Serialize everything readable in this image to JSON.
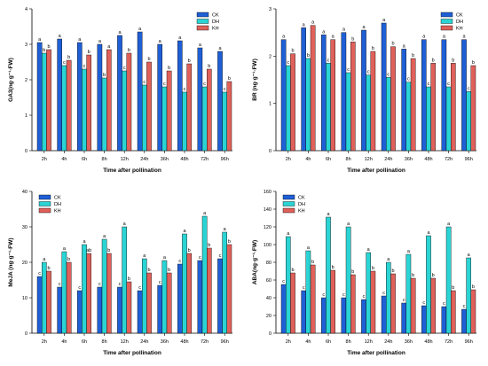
{
  "colors": {
    "CK": "#1f5fd6",
    "DH": "#2ad4d4",
    "KH": "#e0605a",
    "bar_edge": "#000000"
  },
  "chart_data": [
    {
      "type": "bar",
      "xlabel": "Time after pollination",
      "ylabel": "GA3(ng·g⁻¹·FW)",
      "ylim": [
        0,
        4
      ],
      "yticks": [
        "0",
        "1",
        "2",
        "3",
        "4"
      ],
      "ytick_values": [
        0,
        1,
        2,
        3,
        4
      ],
      "legend_placement": "top-right",
      "categories": [
        "2h",
        "4h",
        "6h",
        "8h",
        "12h",
        "24h",
        "36h",
        "48h",
        "72h",
        "96h"
      ],
      "series": [
        {
          "name": "CK",
          "values": [
            3.05,
            3.15,
            3.05,
            3.0,
            3.25,
            3.35,
            3.0,
            3.1,
            2.9,
            2.8
          ],
          "letters": [
            "a",
            "a",
            "a",
            "a",
            "a",
            "a",
            "a",
            "a",
            "a",
            "a"
          ]
        },
        {
          "name": "DH",
          "values": [
            2.75,
            2.4,
            2.3,
            2.05,
            2.25,
            1.85,
            1.8,
            1.65,
            1.8,
            1.65
          ],
          "letters": [
            "b",
            "c",
            "c",
            "b",
            "c",
            "c",
            "c",
            "c",
            "c",
            "c"
          ]
        },
        {
          "name": "KH",
          "values": [
            2.85,
            2.55,
            2.7,
            2.85,
            2.75,
            2.5,
            2.25,
            2.45,
            2.3,
            1.95
          ],
          "letters": [
            "b",
            "b",
            "b",
            "a",
            "b",
            "b",
            "b",
            "b",
            "b",
            "b"
          ]
        }
      ]
    },
    {
      "type": "bar",
      "xlabel": "Time after pollination",
      "ylabel": "BR (ng·g⁻¹·FW)",
      "ylim": [
        0,
        3
      ],
      "yticks": [
        "0",
        "1",
        "2",
        "3"
      ],
      "ytick_values": [
        0,
        1,
        2,
        3
      ],
      "legend_placement": "top-right",
      "categories": [
        "2h",
        "4h",
        "6h",
        "8h",
        "12h",
        "24h",
        "36h",
        "48h",
        "72h",
        "96h"
      ],
      "series": [
        {
          "name": "CK",
          "values": [
            2.35,
            2.6,
            2.45,
            2.5,
            2.55,
            2.7,
            2.15,
            2.35,
            2.35,
            2.35
          ],
          "letters": [
            "a",
            "a",
            "a",
            "a",
            "a",
            "a",
            "a",
            "a",
            "a",
            "a"
          ]
        },
        {
          "name": "DH",
          "values": [
            1.8,
            1.95,
            1.85,
            1.65,
            1.6,
            1.55,
            1.45,
            1.35,
            1.35,
            1.25
          ],
          "letters": [
            "c",
            "b",
            "c",
            "c",
            "c",
            "c",
            "c",
            "c",
            "c",
            "c"
          ]
        },
        {
          "name": "KH",
          "values": [
            2.05,
            2.65,
            2.35,
            2.3,
            2.1,
            2.2,
            1.95,
            1.85,
            1.85,
            1.8
          ],
          "letters": [
            "b",
            "a",
            "a",
            "b",
            "b",
            "b",
            "b",
            "b",
            "b",
            "b"
          ]
        }
      ]
    },
    {
      "type": "bar",
      "xlabel": "Time after pollination",
      "ylabel": "MeJA (ng·g⁻¹·FW)",
      "ylim": [
        0,
        40
      ],
      "yticks": [
        "0",
        "10",
        "20",
        "30",
        "40"
      ],
      "ytick_values": [
        0,
        10,
        20,
        30,
        40
      ],
      "legend_placement": "top-left",
      "categories": [
        "2h",
        "4h",
        "6h",
        "8h",
        "12h",
        "24h",
        "36h",
        "48h",
        "72h",
        "96h"
      ],
      "series": [
        {
          "name": "CK",
          "values": [
            16,
            13,
            12,
            13,
            13,
            12,
            13.5,
            19.5,
            20.5,
            21
          ],
          "letters": [
            "c",
            "c",
            "c",
            "c",
            "c",
            "c",
            "c",
            "c",
            "c",
            "c"
          ]
        },
        {
          "name": "DH",
          "values": [
            20,
            23,
            25,
            26.5,
            30,
            21,
            20.5,
            28,
            33,
            28.5
          ],
          "letters": [
            "a",
            "a",
            "a",
            "a",
            "a",
            "a",
            "a",
            "a",
            "a",
            "a"
          ]
        },
        {
          "name": "KH",
          "values": [
            17.5,
            20,
            22.5,
            22.5,
            14.5,
            17,
            17,
            22.5,
            24,
            25
          ],
          "letters": [
            "b",
            "b",
            "ab",
            "b",
            "b",
            "b",
            "b",
            "b",
            "b",
            "b"
          ]
        }
      ]
    },
    {
      "type": "bar",
      "xlabel": "Time after pollination",
      "ylabel": "ABA(ng·g⁻¹·FW)",
      "ylim": [
        0,
        160
      ],
      "yticks": [
        "0",
        "20",
        "40",
        "60",
        "80",
        "100",
        "120",
        "140",
        "160"
      ],
      "ytick_values": [
        0,
        20,
        40,
        60,
        80,
        100,
        120,
        140,
        160
      ],
      "legend_placement": "top-left",
      "categories": [
        "2h",
        "4h",
        "6h",
        "8h",
        "12h",
        "24h",
        "36h",
        "48h",
        "72h",
        "96h"
      ],
      "series": [
        {
          "name": "CK",
          "values": [
            55,
            48,
            40,
            40,
            38,
            42,
            34,
            31,
            30,
            27
          ],
          "letters": [
            "c",
            "c",
            "c",
            "c",
            "c",
            "c",
            "c",
            "c",
            "c",
            "c"
          ]
        },
        {
          "name": "DH",
          "values": [
            109,
            93,
            131,
            120,
            91,
            80,
            89,
            110,
            120,
            85
          ],
          "letters": [
            "a",
            "a",
            "a",
            "a",
            "a",
            "a",
            "a",
            "a",
            "a",
            "a"
          ]
        },
        {
          "name": "KH",
          "values": [
            68,
            77,
            71,
            66,
            70,
            67,
            62,
            62,
            48,
            49
          ],
          "letters": [
            "b",
            "b",
            "b",
            "b",
            "b",
            "b",
            "b",
            "b",
            "b",
            "b"
          ]
        }
      ]
    }
  ]
}
